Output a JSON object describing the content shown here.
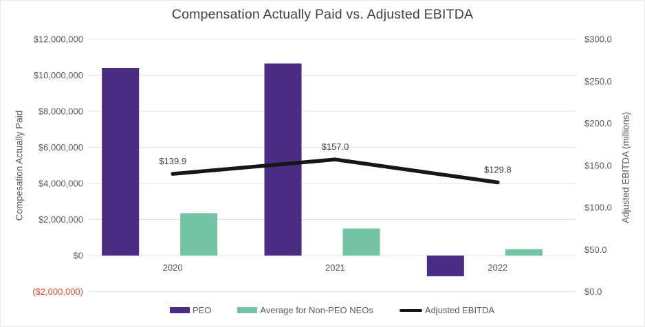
{
  "title": "Compensation Actually Paid vs. Adjusted EBITDA",
  "colors": {
    "peo": "#4A2C85",
    "non_peo": "#73C4A4",
    "ebitda_line": "#161616",
    "grid": "#e3e3e5",
    "tick_text": "#595959",
    "title_text": "#404040",
    "negative_tick": "#e0492c",
    "data_label": "#404040",
    "frame": "#e7e7ea"
  },
  "chart_data": {
    "type": "combo-bar-line",
    "title": "Compensation Actually Paid vs. Adjusted EBITDA",
    "categories": [
      "2020",
      "2021",
      "2022"
    ],
    "series": [
      {
        "name": "PEO",
        "chart": "bar",
        "axis": "left",
        "color_key": "peo",
        "values": [
          10400000,
          10650000,
          -1150000
        ]
      },
      {
        "name": "Average for Non-PEO NEOs",
        "chart": "bar",
        "axis": "left",
        "color_key": "non_peo",
        "values": [
          2350000,
          1500000,
          350000
        ]
      },
      {
        "name": "Adjusted EBITDA",
        "chart": "line",
        "axis": "right",
        "color_key": "ebitda_line",
        "values": [
          139.9,
          157.0,
          129.8
        ],
        "point_labels": [
          "$139.9",
          "$157.0",
          "$129.8"
        ]
      }
    ],
    "left_axis": {
      "title": "Compesation Actually Paid",
      "min": -2000000,
      "max": 12000000,
      "step": 2000000,
      "tick_labels": [
        "$12,000,000",
        "$10,000,000",
        "$8,000,000",
        "$6,000,000",
        "$4,000,000",
        "$2,000,000",
        "$0",
        "($2,000,000)"
      ]
    },
    "right_axis": {
      "title": "Adjusted EBITDA (millions)",
      "min": 0,
      "max": 300,
      "step": 50,
      "tick_labels": [
        "$300.0",
        "$250.0",
        "$200.0",
        "$150.0",
        "$100.0",
        "$50.0",
        "$0.0"
      ]
    },
    "grid": true,
    "legend_position": "bottom"
  }
}
